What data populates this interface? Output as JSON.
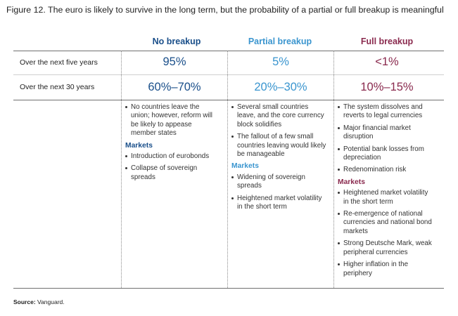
{
  "title": "Figure 12. The euro is likely to survive in the long term, but the probability of a partial or full breakup is meaningful",
  "colors": {
    "no_breakup": "#1a4f8a",
    "partial_breakup": "#3a95cf",
    "full_breakup": "#8a2a4e",
    "text": "#222222"
  },
  "columns": [
    {
      "heading": "No breakup",
      "five_year": "95%",
      "thirty_year": "60%–70%"
    },
    {
      "heading": "Partial breakup",
      "five_year": "5%",
      "thirty_year": "20%–30%"
    },
    {
      "heading": "Full breakup",
      "five_year": "<1%",
      "thirty_year": "10%–15%"
    }
  ],
  "rows": {
    "five_year_label": "Over the next five years",
    "thirty_year_label": "Over the next 30 years"
  },
  "details": {
    "no_breakup": {
      "bullets": [
        "No countries leave the union; however, reform will be likely to appease member states"
      ],
      "markets_heading": "Markets",
      "markets": [
        "Introduction of eurobonds",
        "Collapse of sovereign spreads"
      ]
    },
    "partial_breakup": {
      "bullets": [
        "Several small countries leave, and the core currency block solidifies",
        "The fallout of a few small countries leaving would likely be manageable"
      ],
      "markets_heading": "Markets",
      "markets": [
        "Widening of sovereign spreads",
        "Heightened market volatility in the short term"
      ]
    },
    "full_breakup": {
      "bullets": [
        "The system dissolves and reverts to legal currencies",
        "Major financial market disruption",
        "Potential bank losses from depreciation",
        "Redenomination risk"
      ],
      "markets_heading": "Markets",
      "markets": [
        "Heightened market volatility in the short term",
        "Re-emergence of national currencies and national bond markets",
        "Strong Deutsche Mark, weak peripheral currencies",
        "Higher inflation in the periphery"
      ]
    }
  },
  "source": {
    "label": "Source:",
    "text": "Vanguard."
  }
}
